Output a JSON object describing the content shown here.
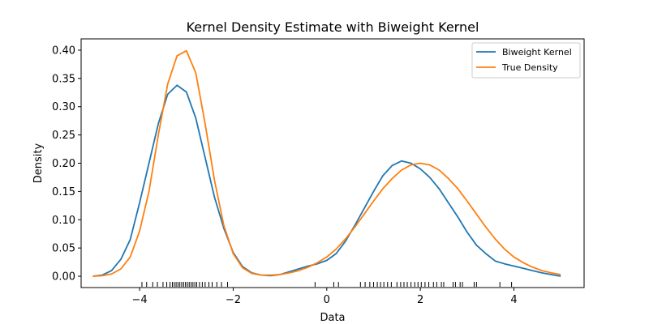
{
  "chart_data": {
    "type": "line",
    "title": "Kernel Density Estimate with Biweight Kernel",
    "xlabel": "Data",
    "ylabel": "Density",
    "xlim": [
      -5.25,
      5.5
    ],
    "ylim": [
      -0.02,
      0.42
    ],
    "xticks": [
      -4,
      -2,
      0,
      2,
      4
    ],
    "xtick_labels": [
      "−4",
      "−2",
      "0",
      "2",
      "4"
    ],
    "yticks": [
      0.0,
      0.05,
      0.1,
      0.15,
      0.2,
      0.25,
      0.3,
      0.35,
      0.4
    ],
    "ytick_labels": [
      "0.00",
      "0.05",
      "0.10",
      "0.15",
      "0.20",
      "0.25",
      "0.30",
      "0.35",
      "0.40"
    ],
    "grid": false,
    "legend": "top-right",
    "series": [
      {
        "name": "Biweight Kernel",
        "color": "#1f77b4",
        "x": [
          -5.0,
          -4.8,
          -4.6,
          -4.4,
          -4.2,
          -4.0,
          -3.8,
          -3.6,
          -3.4,
          -3.2,
          -3.0,
          -2.8,
          -2.6,
          -2.4,
          -2.2,
          -2.0,
          -1.8,
          -1.6,
          -1.4,
          -1.2,
          -1.0,
          -0.8,
          -0.6,
          -0.4,
          -0.2,
          0.0,
          0.2,
          0.4,
          0.6,
          0.8,
          1.0,
          1.2,
          1.4,
          1.6,
          1.8,
          2.0,
          2.2,
          2.4,
          2.6,
          2.8,
          3.0,
          3.2,
          3.4,
          3.6,
          3.8,
          4.0,
          4.2,
          4.4,
          4.6,
          4.8,
          5.0
        ],
        "y": [
          0.0,
          0.002,
          0.01,
          0.03,
          0.065,
          0.13,
          0.2,
          0.27,
          0.322,
          0.338,
          0.326,
          0.28,
          0.21,
          0.14,
          0.085,
          0.042,
          0.017,
          0.006,
          0.002,
          0.001,
          0.003,
          0.008,
          0.013,
          0.018,
          0.022,
          0.028,
          0.04,
          0.062,
          0.09,
          0.12,
          0.15,
          0.178,
          0.196,
          0.204,
          0.2,
          0.19,
          0.175,
          0.155,
          0.13,
          0.105,
          0.078,
          0.055,
          0.04,
          0.027,
          0.022,
          0.018,
          0.014,
          0.01,
          0.006,
          0.003,
          0.0
        ]
      },
      {
        "name": "True Density",
        "color": "#ff7f0e",
        "x": [
          -5.0,
          -4.8,
          -4.6,
          -4.4,
          -4.2,
          -4.0,
          -3.8,
          -3.6,
          -3.4,
          -3.2,
          -3.0,
          -2.8,
          -2.6,
          -2.4,
          -2.2,
          -2.0,
          -1.8,
          -1.6,
          -1.4,
          -1.2,
          -1.0,
          -0.8,
          -0.6,
          -0.4,
          -0.2,
          0.0,
          0.2,
          0.4,
          0.6,
          0.8,
          1.0,
          1.2,
          1.4,
          1.6,
          1.8,
          2.0,
          2.2,
          2.4,
          2.6,
          2.8,
          3.0,
          3.2,
          3.4,
          3.6,
          3.8,
          4.0,
          4.2,
          4.4,
          4.6,
          4.8,
          5.0
        ],
        "y": [
          0.0,
          0.001,
          0.004,
          0.013,
          0.034,
          0.08,
          0.15,
          0.25,
          0.34,
          0.39,
          0.399,
          0.36,
          0.27,
          0.17,
          0.09,
          0.04,
          0.015,
          0.005,
          0.002,
          0.002,
          0.003,
          0.006,
          0.01,
          0.016,
          0.024,
          0.034,
          0.048,
          0.066,
          0.087,
          0.11,
          0.133,
          0.155,
          0.173,
          0.188,
          0.197,
          0.2,
          0.197,
          0.188,
          0.173,
          0.155,
          0.133,
          0.11,
          0.087,
          0.066,
          0.048,
          0.034,
          0.024,
          0.016,
          0.01,
          0.006,
          0.003
        ]
      }
    ],
    "rug": [
      -3.95,
      -3.85,
      -3.72,
      -3.62,
      -3.5,
      -3.42,
      -3.35,
      -3.3,
      -3.26,
      -3.22,
      -3.18,
      -3.14,
      -3.1,
      -3.06,
      -3.02,
      -2.98,
      -2.94,
      -2.9,
      -2.86,
      -2.82,
      -2.78,
      -2.72,
      -2.66,
      -2.6,
      -2.52,
      -2.45,
      -2.35,
      -2.25,
      -2.12,
      -0.25,
      0.15,
      0.25,
      0.72,
      0.82,
      0.92,
      1.0,
      1.08,
      1.15,
      1.22,
      1.3,
      1.38,
      1.5,
      1.58,
      1.65,
      1.72,
      1.8,
      1.88,
      1.95,
      2.02,
      2.1,
      2.18,
      2.28,
      2.35,
      2.45,
      2.5,
      2.7,
      2.75,
      2.85,
      2.9,
      3.15,
      3.2,
      3.7,
      3.95
    ]
  }
}
